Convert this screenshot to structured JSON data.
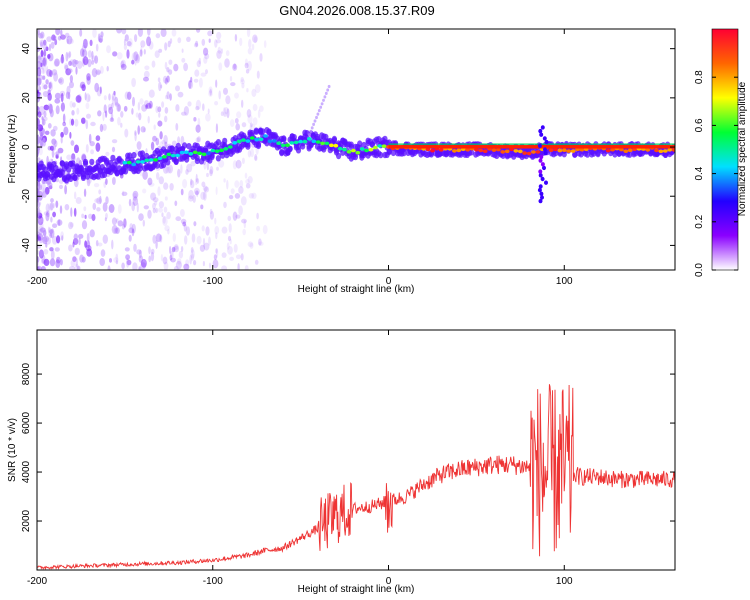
{
  "title": "GN04.2026.008.15.37.R09",
  "chart_data": [
    {
      "type": "heatmap",
      "xlabel": "Height of straight line (km)",
      "ylabel": "Frequency (Hz)",
      "xlim": [
        -200,
        163
      ],
      "ylim": [
        -50,
        48
      ],
      "xticks": [
        -200,
        -100,
        0,
        100
      ],
      "yticks": [
        -40,
        -20,
        0,
        20,
        40
      ],
      "colorbar": {
        "label": "Normalized spectral amplitude",
        "range": [
          0,
          1
        ],
        "ticks": [
          "0.0",
          "0.2",
          "0.4",
          "0.6",
          "0.8"
        ],
        "stops": [
          "#ffffff",
          "#8a00ff",
          "#2200ff",
          "#00e0ff",
          "#00ff33",
          "#ffff00",
          "#ff6600",
          "#ff0033"
        ]
      },
      "ridge": [
        {
          "x": -200,
          "y": -10
        },
        {
          "x": -180,
          "y": -10
        },
        {
          "x": -160,
          "y": -8
        },
        {
          "x": -140,
          "y": -6
        },
        {
          "x": -120,
          "y": -3
        },
        {
          "x": -100,
          "y": -2
        },
        {
          "x": -85,
          "y": 2
        },
        {
          "x": -70,
          "y": 4
        },
        {
          "x": -60,
          "y": 0
        },
        {
          "x": -45,
          "y": 3
        },
        {
          "x": -35,
          "y": 1
        },
        {
          "x": -20,
          "y": -2
        },
        {
          "x": -5,
          "y": 0
        },
        {
          "x": 20,
          "y": -1
        },
        {
          "x": 50,
          "y": -1
        },
        {
          "x": 80,
          "y": -2
        },
        {
          "x": 90,
          "y": -1
        },
        {
          "x": 163,
          "y": -1
        }
      ]
    },
    {
      "type": "line",
      "xlabel": "Height of straight line (km)",
      "ylabel": "SNR (10 * v/v)",
      "xlim": [
        -200,
        163
      ],
      "ylim": [
        0,
        9800
      ],
      "xticks": [
        -200,
        -100,
        0,
        100
      ],
      "yticks": [
        2000,
        4000,
        6000,
        8000
      ],
      "series": [
        {
          "name": "SNR",
          "color": "#ee3333",
          "x": [
            -200,
            -180,
            -160,
            -140,
            -120,
            -100,
            -90,
            -80,
            -70,
            -60,
            -50,
            -40,
            -30,
            -20,
            -10,
            0,
            10,
            20,
            30,
            40,
            50,
            60,
            70,
            80,
            85,
            90,
            95,
            100,
            105,
            110,
            120,
            130,
            140,
            150,
            163
          ],
          "y": [
            100,
            150,
            200,
            250,
            300,
            400,
            500,
            600,
            800,
            900,
            1300,
            1700,
            2200,
            2500,
            2600,
            2800,
            3000,
            3500,
            3900,
            4100,
            4200,
            4300,
            4300,
            4200,
            4100,
            4000,
            4000,
            4100,
            3900,
            3800,
            3800,
            3700,
            3700,
            3700,
            3700
          ]
        }
      ]
    }
  ]
}
